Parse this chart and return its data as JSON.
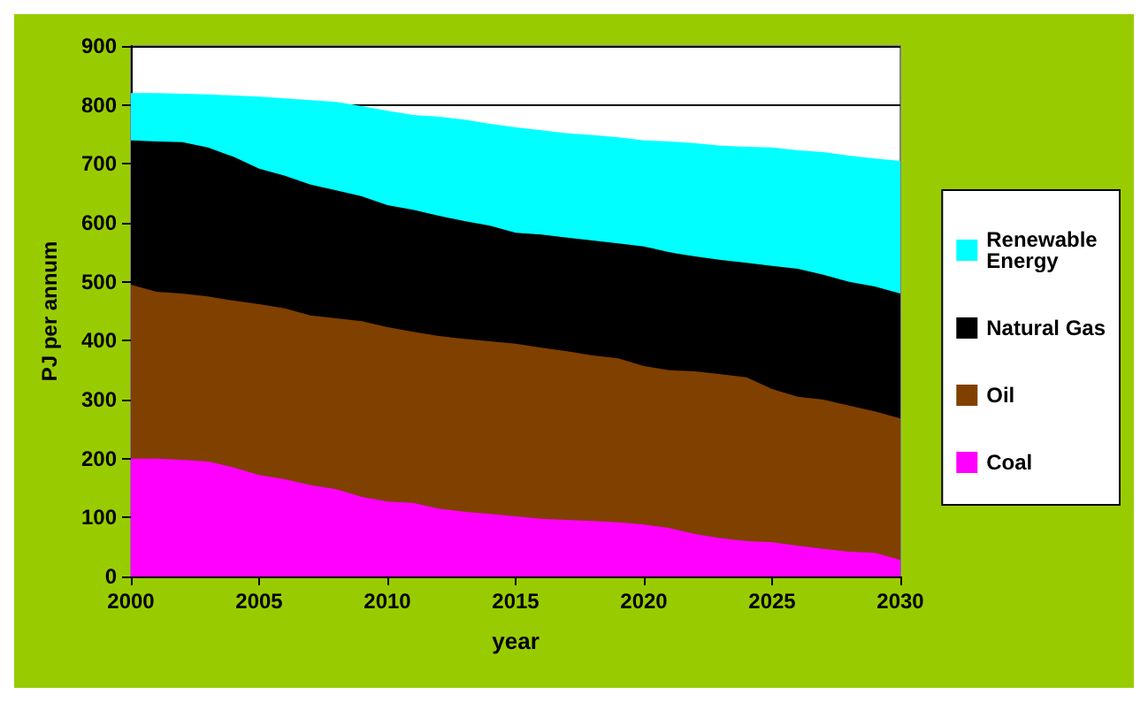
{
  "chart_data": {
    "type": "area",
    "stacked": true,
    "xlabel": "year",
    "ylabel": "PJ per annum",
    "x": [
      2000,
      2001,
      2002,
      2003,
      2004,
      2005,
      2006,
      2007,
      2008,
      2009,
      2010,
      2011,
      2012,
      2013,
      2014,
      2015,
      2016,
      2017,
      2018,
      2019,
      2020,
      2021,
      2022,
      2023,
      2024,
      2025,
      2026,
      2027,
      2028,
      2029,
      2030
    ],
    "series": [
      {
        "name": "Coal",
        "color": "#ff00ff",
        "values": [
          200,
          200,
          198,
          195,
          185,
          172,
          165,
          155,
          148,
          135,
          127,
          125,
          115,
          110,
          106,
          102,
          98,
          96,
          94,
          92,
          88,
          82,
          72,
          65,
          60,
          58,
          52,
          47,
          42,
          40,
          28
        ]
      },
      {
        "name": "Oil",
        "color": "#804000",
        "values": [
          295,
          283,
          282,
          280,
          283,
          290,
          290,
          288,
          290,
          298,
          296,
          290,
          293,
          293,
          293,
          293,
          290,
          286,
          281,
          278,
          269,
          268,
          276,
          278,
          278,
          260,
          253,
          253,
          248,
          240,
          240
        ]
      },
      {
        "name": "Natural Gas",
        "color": "#000000",
        "values": [
          245,
          255,
          257,
          253,
          244,
          230,
          225,
          222,
          217,
          212,
          207,
          207,
          204,
          200,
          196,
          188,
          192,
          193,
          195,
          195,
          203,
          200,
          195,
          194,
          194,
          209,
          217,
          212,
          210,
          212,
          212
        ]
      },
      {
        "name": "Renewable Energy",
        "color": "#00ffff",
        "values": [
          80,
          82,
          82,
          90,
          104,
          122,
          131,
          143,
          150,
          153,
          160,
          161,
          168,
          172,
          173,
          179,
          177,
          177,
          179,
          180,
          180,
          188,
          192,
          194,
          197,
          201,
          201,
          208,
          214,
          217,
          225
        ]
      }
    ],
    "xlim": [
      2000,
      2030
    ],
    "xticks": [
      2000,
      2005,
      2010,
      2015,
      2020,
      2025,
      2030
    ],
    "ylim": [
      0,
      900
    ],
    "yticks": [
      0,
      100,
      200,
      300,
      400,
      500,
      600,
      700,
      800,
      900
    ],
    "grid": "y",
    "legend": "right"
  }
}
